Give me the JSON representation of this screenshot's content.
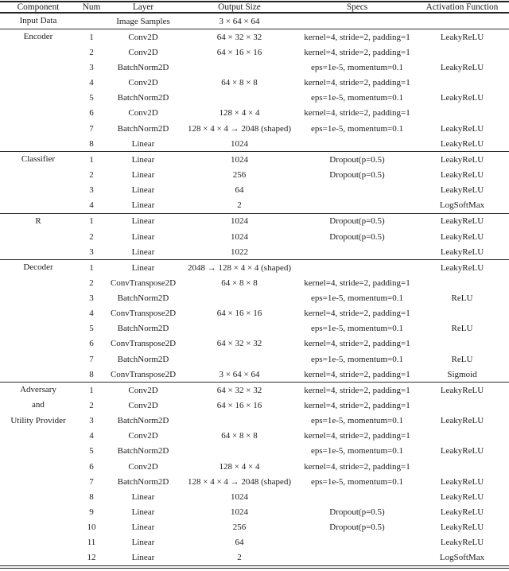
{
  "table": {
    "columns": [
      "Component",
      "Num",
      "Layer",
      "Output Size",
      "Specs",
      "Activation Function"
    ],
    "sections": [
      {
        "component": [
          "Input Data"
        ],
        "rows": [
          {
            "num": "",
            "layer": "Image Samples",
            "output": "3 × 64 × 64",
            "specs": "",
            "activation": ""
          }
        ]
      },
      {
        "component": [
          "Encoder"
        ],
        "rows": [
          {
            "num": "1",
            "layer": "Conv2D",
            "output": "64 × 32 × 32",
            "specs": "kernel=4, stride=2, padding=1",
            "activation": "LeakyReLU"
          },
          {
            "num": "2",
            "layer": "Conv2D",
            "output": "64 × 16 × 16",
            "specs": "kernel=4, stride=2, padding=1",
            "activation": ""
          },
          {
            "num": "3",
            "layer": "BatchNorm2D",
            "output": "",
            "specs": "eps=1e-5, momentum=0.1",
            "activation": "LeakyReLU"
          },
          {
            "num": "4",
            "layer": "Conv2D",
            "output": "64 × 8 × 8",
            "specs": "kernel=4, stride=2, padding=1",
            "activation": ""
          },
          {
            "num": "5",
            "layer": "BatchNorm2D",
            "output": "",
            "specs": "eps=1e-5, momentum=0.1",
            "activation": "LeakyReLU"
          },
          {
            "num": "6",
            "layer": "Conv2D",
            "output": "128 × 4 × 4",
            "specs": "kernel=4, stride=2, padding=1",
            "activation": ""
          },
          {
            "num": "7",
            "layer": "BatchNorm2D",
            "output": "128 × 4 × 4 → 2048 (shaped)",
            "specs": "eps=1e-5, momentum=0.1",
            "activation": "LeakyReLU"
          },
          {
            "num": "8",
            "layer": "Linear",
            "output": "1024",
            "specs": "",
            "activation": "LeakyReLU"
          }
        ]
      },
      {
        "component": [
          "Classifier"
        ],
        "rows": [
          {
            "num": "1",
            "layer": "Linear",
            "output": "1024",
            "specs": "Dropout(p=0.5)",
            "activation": "LeakyReLU"
          },
          {
            "num": "2",
            "layer": "Linear",
            "output": "256",
            "specs": "Dropout(p=0.5)",
            "activation": "LeakyReLU"
          },
          {
            "num": "3",
            "layer": "Linear",
            "output": "64",
            "specs": "",
            "activation": "LeakyReLU"
          },
          {
            "num": "4",
            "layer": "Linear",
            "output": "2",
            "specs": "",
            "activation": "LogSoftMax"
          }
        ]
      },
      {
        "component": [
          "R"
        ],
        "rows": [
          {
            "num": "1",
            "layer": "Linear",
            "output": "1024",
            "specs": "Dropout(p=0.5)",
            "activation": "LeakyReLU"
          },
          {
            "num": "2",
            "layer": "Linear",
            "output": "1024",
            "specs": "Dropout(p=0.5)",
            "activation": "LeakyReLU"
          },
          {
            "num": "3",
            "layer": "Linear",
            "output": "1022",
            "specs": "",
            "activation": "LeakyReLU"
          }
        ]
      },
      {
        "component": [
          "Decoder"
        ],
        "rows": [
          {
            "num": "1",
            "layer": "Linear",
            "output": "2048 → 128 × 4 × 4 (shaped)",
            "specs": "",
            "activation": "LeakyReLU"
          },
          {
            "num": "2",
            "layer": "ConvTranspose2D",
            "output": "64 × 8 × 8",
            "specs": "kernel=4, stride=2, padding=1",
            "activation": ""
          },
          {
            "num": "3",
            "layer": "BatchNorm2D",
            "output": "",
            "specs": "eps=1e-5, momentum=0.1",
            "activation": "ReLU"
          },
          {
            "num": "4",
            "layer": "ConvTranspose2D",
            "output": "64 × 16 × 16",
            "specs": "kernel=4, stride=2, padding=1",
            "activation": ""
          },
          {
            "num": "5",
            "layer": "BatchNorm2D",
            "output": "",
            "specs": "eps=1e-5, momentum=0.1",
            "activation": "ReLU"
          },
          {
            "num": "6",
            "layer": "ConvTranspose2D",
            "output": "64 × 32 × 32",
            "specs": "kernel=4, stride=2, padding=1",
            "activation": ""
          },
          {
            "num": "7",
            "layer": "BatchNorm2D",
            "output": "",
            "specs": "eps=1e-5, momentum=0.1",
            "activation": "ReLU"
          },
          {
            "num": "8",
            "layer": "ConvTranspose2D",
            "output": "3 × 64 × 64",
            "specs": "kernel=4, stride=2, padding=1",
            "activation": "Sigmoid"
          }
        ]
      },
      {
        "component": [
          "Adversary",
          "and",
          "Utility Provider"
        ],
        "rows": [
          {
            "num": "1",
            "layer": "Conv2D",
            "output": "64 × 32 × 32",
            "specs": "kernel=4, stride=2, padding=1",
            "activation": "LeakyReLU"
          },
          {
            "num": "2",
            "layer": "Conv2D",
            "output": "64 × 16 × 16",
            "specs": "kernel=4, stride=2, padding=1",
            "activation": ""
          },
          {
            "num": "3",
            "layer": "BatchNorm2D",
            "output": "",
            "specs": "eps=1e-5, momentum=0.1",
            "activation": "LeakyReLU"
          },
          {
            "num": "4",
            "layer": "Conv2D",
            "output": "64 × 8 × 8",
            "specs": "kernel=4, stride=2, padding=1",
            "activation": ""
          },
          {
            "num": "5",
            "layer": "BatchNorm2D",
            "output": "",
            "specs": "eps=1e-5, momentum=0.1",
            "activation": "LeakyReLU"
          },
          {
            "num": "6",
            "layer": "Conv2D",
            "output": "128 × 4 × 4",
            "specs": "kernel=4, stride=2, padding=1",
            "activation": ""
          },
          {
            "num": "7",
            "layer": "BatchNorm2D",
            "output": "128 × 4 × 4 → 2048 (shaped)",
            "specs": "eps=1e-5, momentum=0.1",
            "activation": "LeakyReLU"
          },
          {
            "num": "8",
            "layer": "Linear",
            "output": "1024",
            "specs": "",
            "activation": "LeakyReLU"
          },
          {
            "num": "9",
            "layer": "Linear",
            "output": "1024",
            "specs": "Dropout(p=0.5)",
            "activation": "LeakyReLU"
          },
          {
            "num": "10",
            "layer": "Linear",
            "output": "256",
            "specs": "Dropout(p=0.5)",
            "activation": "LeakyReLU"
          },
          {
            "num": "11",
            "layer": "Linear",
            "output": "64",
            "specs": "",
            "activation": "LeakyReLU"
          },
          {
            "num": "12",
            "layer": "Linear",
            "output": "2",
            "specs": "",
            "activation": "LogSoftMax"
          }
        ]
      }
    ]
  }
}
